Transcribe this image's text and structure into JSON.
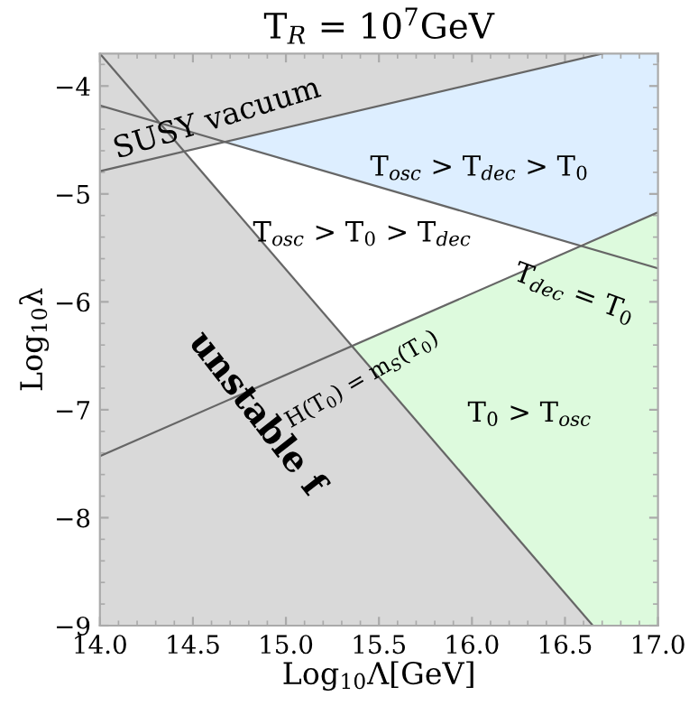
{
  "chart_data": {
    "type": "line",
    "title": "T$_{R}$ = 10$^{7}$GeV",
    "xlabel": "Log$_{10}$Λ[GeV]",
    "ylabel": "Log$_{10}$λ",
    "xlim": [
      14,
      17
    ],
    "ylim": [
      -9,
      -3.7
    ],
    "xticks": [
      {
        "value": 14,
        "label": "14.0"
      },
      {
        "value": 14.5,
        "label": "14.5"
      },
      {
        "value": 15,
        "label": "15.0"
      },
      {
        "value": 15.5,
        "label": "15.5"
      },
      {
        "value": 16,
        "label": "16.0"
      },
      {
        "value": 16.5,
        "label": "16.5"
      },
      {
        "value": 17,
        "label": "17.0"
      }
    ],
    "yticks": [
      {
        "value": -4,
        "label": "−4"
      },
      {
        "value": -5,
        "label": "−5"
      },
      {
        "value": -6,
        "label": "−6"
      },
      {
        "value": -7,
        "label": "−7"
      },
      {
        "value": -8,
        "label": "−8"
      },
      {
        "value": -9,
        "label": "−9"
      }
    ],
    "grid": false,
    "legend": false,
    "series": [
      {
        "type": "area",
        "color": "#d9d9d9",
        "x": [
          14,
          16.65
        ],
        "values": [
          null,
          null
        ],
        "lower": [
          -9,
          -9
        ],
        "upper": [
          -3.7,
          -9
        ]
      },
      {
        "type": "area",
        "color": "#d9d9d9",
        "x": [
          14,
          16.7
        ],
        "values": [
          null,
          null
        ],
        "lower": [
          -4.79,
          -3.7
        ],
        "upper": [
          -3.7,
          -3.7
        ]
      },
      {
        "type": "area",
        "color": "#ddeeff",
        "x": [
          14.67,
          16.57,
          16.7,
          17
        ],
        "values": [
          null,
          null,
          null,
          null
        ],
        "lower": [
          -4.53,
          -5.47,
          -5.4,
          -5.17
        ],
        "upper": [
          -4.52,
          -3.75,
          -3.7,
          -3.7
        ]
      },
      {
        "type": "area",
        "color": "#ddfadd",
        "x": [
          15.355,
          16.65,
          17
        ],
        "values": [
          null,
          null,
          null
        ],
        "lower": [
          -6.41,
          -9,
          -9
        ],
        "upper": [
          -6.41,
          -5.43,
          -5.17
        ]
      },
      {
        "color": "#666666",
        "x": [
          14,
          16.65
        ],
        "values": [
          -3.7,
          -9
        ]
      },
      {
        "color": "#666666",
        "x": [
          14,
          16.7
        ],
        "values": [
          -4.79,
          -3.7
        ]
      },
      {
        "color": "#666666",
        "x": [
          14,
          17
        ],
        "values": [
          -4.18,
          -5.69
        ]
      },
      {
        "color": "#666666",
        "x": [
          14,
          17
        ],
        "values": [
          -7.43,
          -5.17
        ]
      }
    ],
    "annotations": [
      "SUSY vacuum",
      "T$_{osc}$ > T$_{dec}$ > T$_{0}$",
      "T$_{osc}$ > T$_{0}$ > T$_{dec}$",
      "T$_{dec}$ = T$_{0}$",
      "H(T$_{0}$) = m$_{S}$(T$_{0}$)",
      "unstable f",
      "T$_{0}$ > T$_{osc}$"
    ]
  }
}
